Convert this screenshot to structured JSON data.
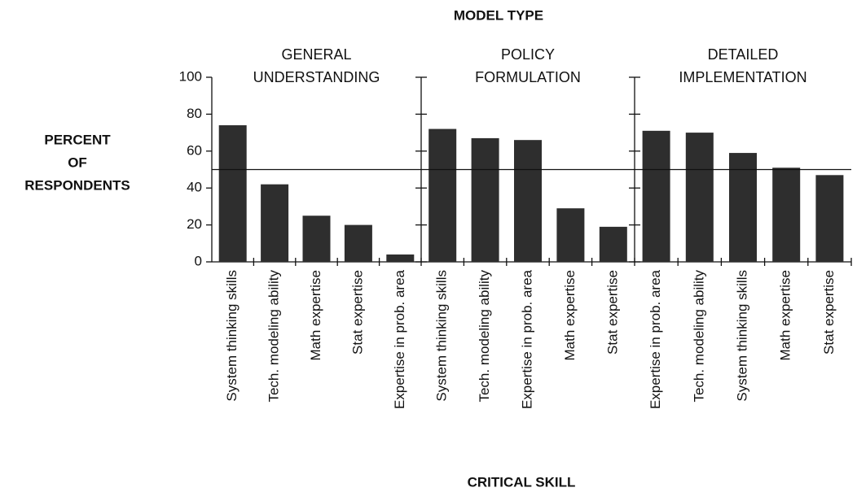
{
  "title": "MODEL TYPE",
  "y_label": [
    "PERCENT",
    "OF",
    "RESPONDENTS"
  ],
  "x_label": "CRITICAL SKILL",
  "chart_data": [
    {
      "type": "bar",
      "subtitle": [
        "GENERAL",
        "UNDERSTANDING"
      ],
      "categories": [
        "System thinking skills",
        "Tech. modeling ability",
        "Math expertise",
        "Stat expertise",
        "Expertise in prob. area"
      ],
      "values": [
        74,
        42,
        25,
        20,
        4
      ],
      "color": "#2e2e2e",
      "ylim": [
        0,
        100
      ],
      "yticks": [
        0,
        20,
        40,
        60,
        80,
        100
      ],
      "tick_labels": true,
      "reference_line": 50
    },
    {
      "type": "bar",
      "subtitle": [
        "POLICY",
        "FORMULATION"
      ],
      "categories": [
        "System thinking skills",
        "Tech. modeling ability",
        "Expertise in prob. area",
        "Math expertise",
        "Stat expertise"
      ],
      "values": [
        72,
        67,
        66,
        29,
        19
      ],
      "color": "#2e2e2e",
      "ylim": [
        0,
        100
      ],
      "yticks": [
        0,
        20,
        40,
        60,
        80,
        100
      ],
      "tick_labels": false,
      "reference_line": 50
    },
    {
      "type": "bar",
      "subtitle": [
        "DETAILED",
        "IMPLEMENTATION"
      ],
      "categories": [
        "Expertise in prob. area",
        "Tech. modeling ability",
        "System thinking skills",
        "Math expertise",
        "Stat expertise"
      ],
      "values": [
        71,
        70,
        59,
        51,
        47
      ],
      "color": "#2e2e2e",
      "ylim": [
        0,
        100
      ],
      "yticks": [
        0,
        20,
        40,
        60,
        80,
        100
      ],
      "tick_labels": false,
      "reference_line": 50
    }
  ]
}
